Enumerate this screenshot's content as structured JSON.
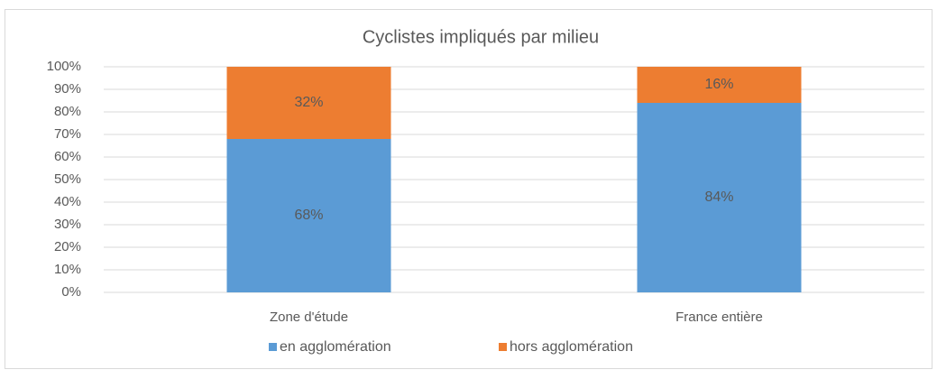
{
  "chart_data": {
    "type": "stacked_bar",
    "title": "Cyclistes impliqués par milieu",
    "categories": [
      "Zone d'étude",
      "France entière"
    ],
    "series": [
      {
        "name": "en agglomération",
        "color": "#5b9bd5",
        "values": [
          68,
          84
        ],
        "value_labels": [
          "68%",
          "84%"
        ]
      },
      {
        "name": "hors agglomération",
        "color": "#ed7d31",
        "values": [
          32,
          16
        ],
        "value_labels": [
          "32%",
          "16%"
        ]
      }
    ],
    "ylim": [
      0,
      100
    ],
    "yticks": [
      {
        "value": 0,
        "label": "0%"
      },
      {
        "value": 10,
        "label": "10%"
      },
      {
        "value": 20,
        "label": "20%"
      },
      {
        "value": 30,
        "label": "30%"
      },
      {
        "value": 40,
        "label": "40%"
      },
      {
        "value": 50,
        "label": "50%"
      },
      {
        "value": 60,
        "label": "60%"
      },
      {
        "value": 70,
        "label": "70%"
      },
      {
        "value": 80,
        "label": "80%"
      },
      {
        "value": 90,
        "label": "90%"
      },
      {
        "value": 100,
        "label": "100%"
      }
    ],
    "grid": true,
    "legend": "bottom"
  }
}
